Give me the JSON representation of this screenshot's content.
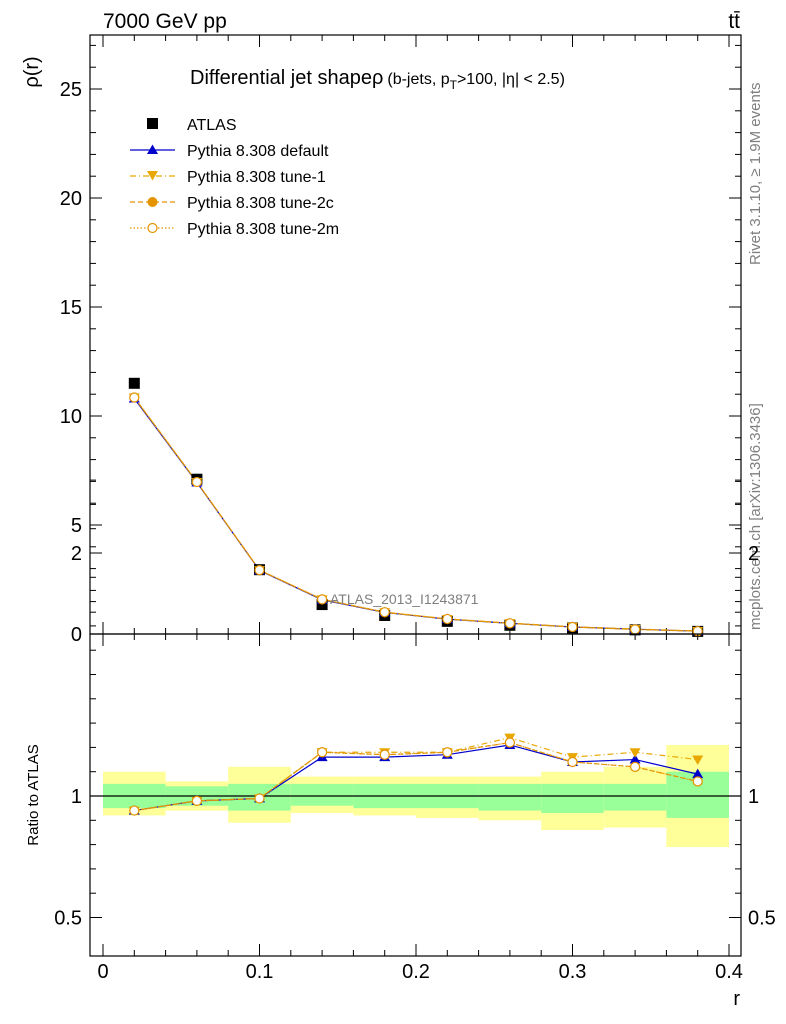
{
  "header": {
    "energy_label": "7000 GeV pp",
    "process_label": "tt̄",
    "side_label_1": "Rivet 3.1.10, ≥ 1.9M events",
    "side_label_2": "mcplots.cern.ch [arXiv:1306.3436]",
    "analysis_label": "ATLAS_2013_I1243871"
  },
  "chart_data": [
    {
      "type": "line",
      "title": "Differential jet shape ρ (b-jets, pT>100, |η| < 2.5)",
      "title_main": "Differential jet shape",
      "title_rho": "ρ",
      "title_detail": "(b-jets, p",
      "title_sub": "T",
      "title_rest": ">100, |η| < 2.5)",
      "xlabel": "r",
      "ylabel": "ρ(r)",
      "xlim": [
        0,
        0.4
      ],
      "ylim": [
        0,
        27.5
      ],
      "yticks": [
        0,
        5,
        10,
        15,
        20,
        25
      ],
      "legend_position": "top-left",
      "x": [
        0.02,
        0.06,
        0.1,
        0.14,
        0.18,
        0.22,
        0.26,
        0.3,
        0.34,
        0.38
      ],
      "series": [
        {
          "name": "ATLAS",
          "color": "#000000",
          "values": [
            11.5,
            7.1,
            2.95,
            1.35,
            0.85,
            0.58,
            0.4,
            0.28,
            0.19,
            0.12
          ]
        },
        {
          "name": "Pythia 8.308 default",
          "color": "#0000cc",
          "values": [
            10.8,
            6.95,
            2.92,
            1.57,
            0.99,
            0.68,
            0.49,
            0.32,
            0.22,
            0.13
          ]
        },
        {
          "name": "Pythia 8.308 tune-1",
          "color": "#e8a800",
          "values": [
            10.85,
            6.97,
            2.93,
            1.59,
            1.0,
            0.69,
            0.5,
            0.33,
            0.23,
            0.14
          ]
        },
        {
          "name": "Pythia 8.308 tune-2c",
          "color": "#e39400",
          "values": [
            10.85,
            6.97,
            2.93,
            1.59,
            1.0,
            0.69,
            0.49,
            0.32,
            0.21,
            0.13
          ]
        },
        {
          "name": "Pythia 8.308 tune-2m",
          "color": "#e39400",
          "values": [
            10.85,
            6.97,
            2.93,
            1.59,
            1.0,
            0.69,
            0.49,
            0.32,
            0.21,
            0.13
          ]
        }
      ]
    },
    {
      "type": "line",
      "xlabel": "r",
      "ylabel": "Ratio to ATLAS",
      "xlim": [
        0,
        0.4
      ],
      "ylim": [
        0.3,
        2.4
      ],
      "yticks": [
        0.5,
        1,
        2
      ],
      "xticks": [
        0,
        0.1,
        0.2,
        0.3,
        0.4
      ],
      "x": [
        0.02,
        0.06,
        0.1,
        0.14,
        0.18,
        0.22,
        0.26,
        0.3,
        0.34,
        0.38
      ],
      "bins": [
        [
          0.0,
          0.04
        ],
        [
          0.04,
          0.08
        ],
        [
          0.08,
          0.12
        ],
        [
          0.12,
          0.16
        ],
        [
          0.16,
          0.2
        ],
        [
          0.2,
          0.24
        ],
        [
          0.24,
          0.28
        ],
        [
          0.28,
          0.32
        ],
        [
          0.32,
          0.36
        ],
        [
          0.36,
          0.4
        ]
      ],
      "band_inner": [
        [
          0.95,
          1.05
        ],
        [
          0.96,
          1.04
        ],
        [
          0.94,
          1.05
        ],
        [
          0.96,
          1.05
        ],
        [
          0.95,
          1.05
        ],
        [
          0.95,
          1.05
        ],
        [
          0.94,
          1.05
        ],
        [
          0.93,
          1.05
        ],
        [
          0.94,
          1.05
        ],
        [
          0.91,
          1.1
        ]
      ],
      "band_outer": [
        [
          0.92,
          1.1
        ],
        [
          0.94,
          1.06
        ],
        [
          0.89,
          1.12
        ],
        [
          0.93,
          1.08
        ],
        [
          0.92,
          1.08
        ],
        [
          0.91,
          1.08
        ],
        [
          0.9,
          1.08
        ],
        [
          0.86,
          1.1
        ],
        [
          0.87,
          1.12
        ],
        [
          0.79,
          1.21
        ]
      ],
      "series": [
        {
          "name": "Pythia 8.308 default",
          "color": "#0000cc",
          "values": [
            0.94,
            0.98,
            0.99,
            1.16,
            1.16,
            1.17,
            1.21,
            1.14,
            1.15,
            1.09
          ]
        },
        {
          "name": "Pythia 8.308 tune-1",
          "color": "#e8a800",
          "values": [
            0.94,
            0.98,
            0.99,
            1.18,
            1.18,
            1.18,
            1.24,
            1.16,
            1.18,
            1.15
          ]
        },
        {
          "name": "Pythia 8.308 tune-2c",
          "color": "#e39400",
          "values": [
            0.94,
            0.98,
            0.99,
            1.18,
            1.17,
            1.18,
            1.22,
            1.14,
            1.12,
            1.06
          ]
        },
        {
          "name": "Pythia 8.308 tune-2m",
          "color": "#e39400",
          "values": [
            0.94,
            0.98,
            0.99,
            1.18,
            1.17,
            1.18,
            1.22,
            1.14,
            1.12,
            1.06
          ]
        }
      ]
    }
  ]
}
